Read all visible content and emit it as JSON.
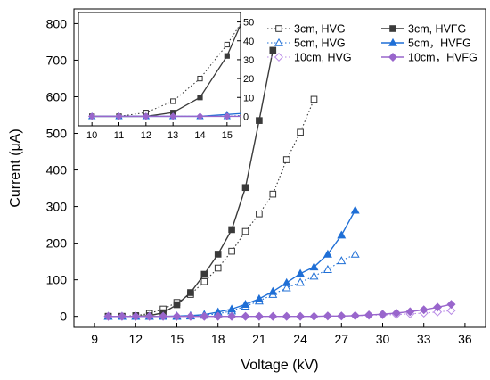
{
  "chart_data": [
    {
      "type": "line",
      "title": "",
      "xlabel": "Voltage (kV)",
      "ylabel": "Current (μA)",
      "xlim": [
        7.5,
        37.5
      ],
      "ylim": [
        -30,
        840
      ],
      "xticks": [
        "9",
        "12",
        "15",
        "18",
        "21",
        "24",
        "27",
        "30",
        "33",
        "36"
      ],
      "yticks": [
        "0",
        "100",
        "200",
        "300",
        "400",
        "500",
        "600",
        "700",
        "800"
      ],
      "grid": false,
      "legend_position": "top-right",
      "series": [
        {
          "name": "3cm, HVG",
          "color": "#333333",
          "line": "dotted",
          "marker": "open-square",
          "x": [
            10,
            11,
            12,
            13,
            14,
            15,
            16,
            17,
            18,
            19,
            20,
            21,
            22,
            23,
            24,
            25
          ],
          "y": [
            0,
            0,
            2,
            8,
            20,
            38,
            60,
            95,
            132,
            178,
            232,
            280,
            334,
            428,
            503,
            593
          ]
        },
        {
          "name": "3cm, HVFG",
          "color": "#3a3a3a",
          "line": "solid",
          "marker": "filled-square",
          "x": [
            10,
            11,
            12,
            13,
            14,
            15,
            16,
            17,
            18,
            19,
            20,
            21,
            22
          ],
          "y": [
            0,
            0,
            0,
            2,
            10,
            32,
            65,
            115,
            170,
            237,
            352,
            535,
            727
          ]
        },
        {
          "name": "5cm, HVG",
          "color": "#1f6fd6",
          "line": "dotted",
          "marker": "open-triangle",
          "x": [
            10,
            11,
            12,
            13,
            14,
            15,
            16,
            17,
            18,
            19,
            20,
            21,
            22,
            23,
            24,
            25,
            26,
            27,
            28
          ],
          "y": [
            0,
            0,
            0,
            0,
            0,
            0,
            1,
            3,
            7,
            15,
            28,
            42,
            60,
            78,
            93,
            110,
            128,
            152,
            170
          ]
        },
        {
          "name": "5cm，HVFG",
          "color": "#1f6fd6",
          "line": "solid",
          "marker": "filled-triangle",
          "x": [
            10,
            11,
            12,
            13,
            14,
            15,
            16,
            17,
            18,
            19,
            20,
            21,
            22,
            23,
            24,
            25,
            26,
            27,
            28
          ],
          "y": [
            0,
            0,
            0,
            0,
            0,
            1,
            2,
            5,
            12,
            20,
            33,
            48,
            68,
            92,
            117,
            135,
            170,
            222,
            290
          ]
        },
        {
          "name": "10cm, HVG",
          "color": "#b98be6",
          "line": "dotted",
          "marker": "open-diamond",
          "x": [
            10,
            11,
            12,
            13,
            14,
            15,
            16,
            17,
            18,
            19,
            20,
            21,
            22,
            23,
            24,
            25,
            26,
            27,
            28,
            29,
            30,
            31,
            32,
            33,
            34,
            35
          ],
          "y": [
            0,
            0,
            0,
            0,
            0,
            0,
            0,
            0,
            0,
            0,
            0,
            0,
            0,
            0,
            0,
            0,
            1,
            1,
            2,
            3,
            4,
            5,
            7,
            9,
            12,
            16
          ]
        },
        {
          "name": "10cm，HVFG",
          "color": "#9966cc",
          "line": "solid",
          "marker": "filled-diamond",
          "x": [
            10,
            11,
            12,
            13,
            14,
            15,
            16,
            17,
            18,
            19,
            20,
            21,
            22,
            23,
            24,
            25,
            26,
            27,
            28,
            29,
            30,
            31,
            32,
            33,
            34,
            35
          ],
          "y": [
            0,
            0,
            0,
            0,
            0,
            0,
            0,
            0,
            0,
            0,
            0,
            0,
            0,
            0,
            0,
            0,
            1,
            1,
            2,
            4,
            6,
            9,
            13,
            18,
            25,
            33
          ]
        }
      ]
    },
    {
      "type": "line",
      "title": "",
      "xlabel": "",
      "ylabel": "",
      "xlim": [
        9.5,
        15.5
      ],
      "ylim": [
        -5,
        55
      ],
      "xticks": [
        "10",
        "11",
        "12",
        "13",
        "14",
        "15"
      ],
      "yticks": [
        "0",
        "10",
        "20",
        "30",
        "40",
        "50"
      ],
      "grid": false,
      "series_ref": "zoom of main chart, x 10-15.5"
    }
  ]
}
